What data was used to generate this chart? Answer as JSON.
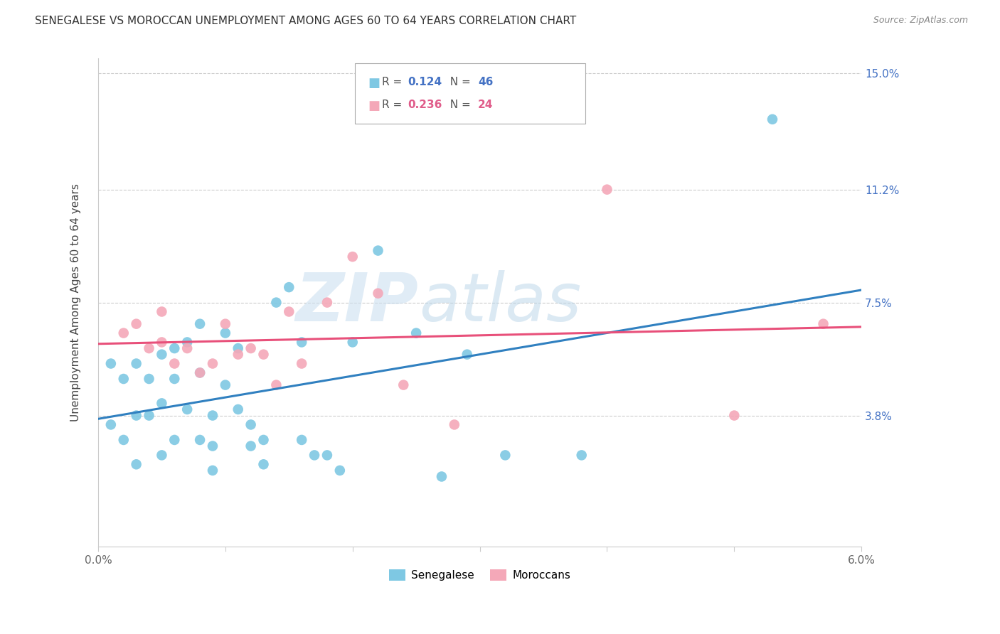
{
  "title": "SENEGALESE VS MOROCCAN UNEMPLOYMENT AMONG AGES 60 TO 64 YEARS CORRELATION CHART",
  "source": "Source: ZipAtlas.com",
  "ylabel": "Unemployment Among Ages 60 to 64 years",
  "xlim": [
    0.0,
    0.06
  ],
  "ylim": [
    -0.005,
    0.155
  ],
  "xticks": [
    0.0,
    0.01,
    0.02,
    0.03,
    0.04,
    0.05,
    0.06
  ],
  "xticklabels": [
    "0.0%",
    "",
    "",
    "",
    "",
    "",
    "6.0%"
  ],
  "ytick_positions": [
    0.038,
    0.075,
    0.112,
    0.15
  ],
  "ytick_labels": [
    "3.8%",
    "7.5%",
    "11.2%",
    "15.0%"
  ],
  "senegalese_color": "#7ec8e3",
  "moroccan_color": "#f4a8b8",
  "line_senegalese_color": "#3080c0",
  "line_moroccan_color": "#e8507a",
  "background_color": "#ffffff",
  "grid_color": "#cccccc",
  "title_fontsize": 11,
  "axis_label_fontsize": 11,
  "tick_fontsize": 11,
  "senegalese_x": [
    0.001,
    0.001,
    0.002,
    0.002,
    0.003,
    0.003,
    0.003,
    0.004,
    0.004,
    0.005,
    0.005,
    0.005,
    0.006,
    0.006,
    0.006,
    0.007,
    0.007,
    0.008,
    0.008,
    0.008,
    0.009,
    0.009,
    0.009,
    0.01,
    0.01,
    0.011,
    0.011,
    0.012,
    0.012,
    0.013,
    0.013,
    0.014,
    0.015,
    0.016,
    0.016,
    0.017,
    0.018,
    0.019,
    0.02,
    0.022,
    0.025,
    0.027,
    0.029,
    0.032,
    0.038,
    0.053
  ],
  "senegalese_y": [
    0.055,
    0.035,
    0.05,
    0.03,
    0.055,
    0.038,
    0.022,
    0.05,
    0.038,
    0.058,
    0.042,
    0.025,
    0.06,
    0.05,
    0.03,
    0.062,
    0.04,
    0.068,
    0.052,
    0.03,
    0.038,
    0.028,
    0.02,
    0.065,
    0.048,
    0.06,
    0.04,
    0.035,
    0.028,
    0.03,
    0.022,
    0.075,
    0.08,
    0.062,
    0.03,
    0.025,
    0.025,
    0.02,
    0.062,
    0.092,
    0.065,
    0.018,
    0.058,
    0.025,
    0.025,
    0.135
  ],
  "moroccan_x": [
    0.002,
    0.003,
    0.004,
    0.005,
    0.005,
    0.006,
    0.007,
    0.008,
    0.009,
    0.01,
    0.011,
    0.012,
    0.013,
    0.014,
    0.015,
    0.016,
    0.018,
    0.02,
    0.022,
    0.024,
    0.028,
    0.04,
    0.05,
    0.057
  ],
  "moroccan_y": [
    0.065,
    0.068,
    0.06,
    0.062,
    0.072,
    0.055,
    0.06,
    0.052,
    0.055,
    0.068,
    0.058,
    0.06,
    0.058,
    0.048,
    0.072,
    0.055,
    0.075,
    0.09,
    0.078,
    0.048,
    0.035,
    0.112,
    0.038,
    0.068
  ],
  "watermark_zip": "ZIP",
  "watermark_atlas": "atlas"
}
